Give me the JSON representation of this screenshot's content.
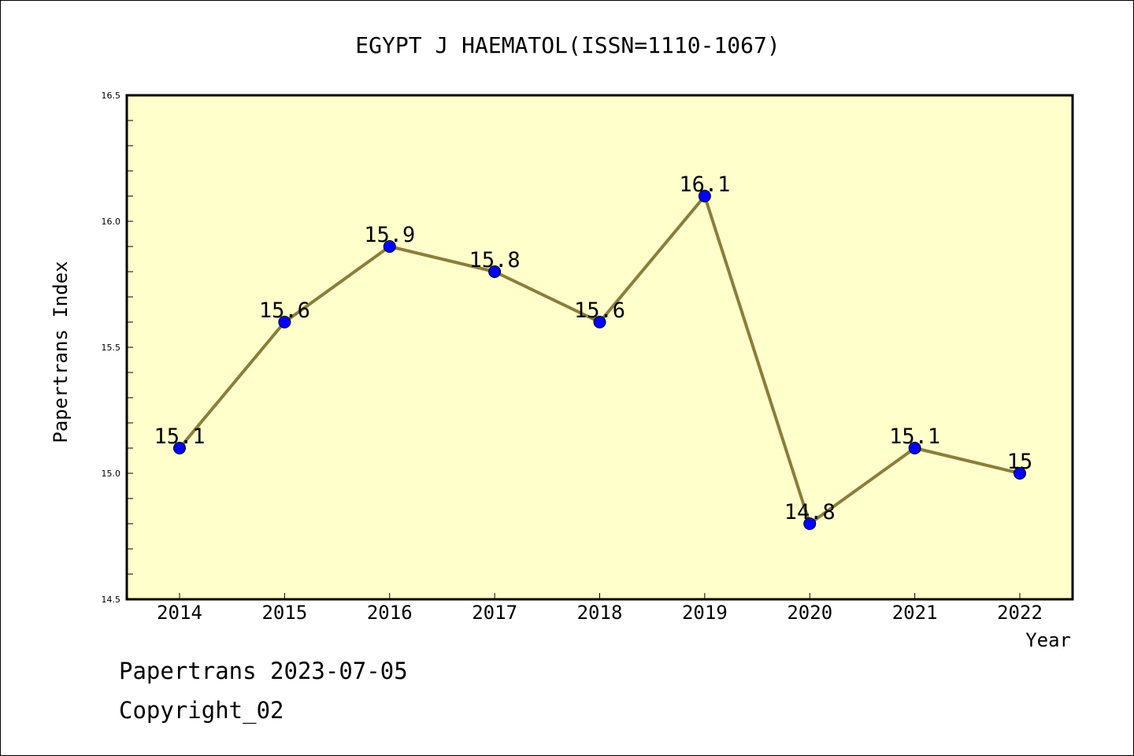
{
  "chart_data": {
    "type": "line",
    "title": "EGYPT J HAEMATOL(ISSN=1110-1067)",
    "xlabel": "Year",
    "ylabel": "Papertrans Index",
    "categories": [
      "2014",
      "2015",
      "2016",
      "2017",
      "2018",
      "2019",
      "2020",
      "2021",
      "2022"
    ],
    "values": [
      15.1,
      15.6,
      15.9,
      15.8,
      15.6,
      16.1,
      14.8,
      15.1,
      15.0
    ],
    "data_labels": [
      "15.1",
      "15.6",
      "15.9",
      "15.8",
      "15.6",
      "16.1",
      "14.8",
      "15.1",
      "15"
    ],
    "ylim": [
      14.5,
      16.5
    ],
    "y_ticks": [
      "14.5",
      "15.0",
      "15.5",
      "16.0",
      "16.5"
    ],
    "grid": false,
    "colors": {
      "plot_background": "#ffffcc",
      "line": "#8b7d3a",
      "marker": "#0000ff"
    }
  },
  "footer": {
    "line1": "Papertrans 2023-07-05",
    "line2": "Copyright_02"
  }
}
